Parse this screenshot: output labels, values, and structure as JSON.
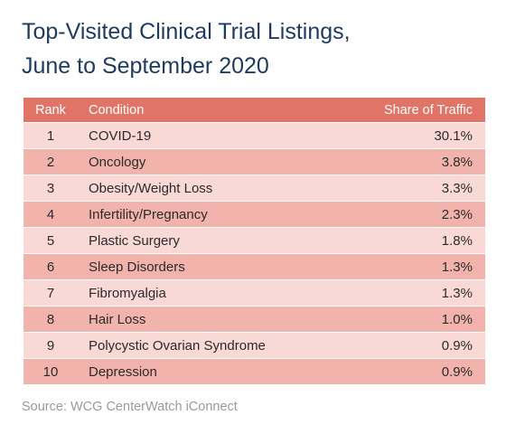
{
  "title_line1": "Top-Visited Clinical Trial Listings,",
  "title_line2": "June to September 2020",
  "source": "Source: WCG CenterWatch iConnect",
  "colors": {
    "header": "#e07467",
    "row_light": "#f8d9d6",
    "row_dark": "#f1b3ab",
    "title": "#1f3a5f"
  },
  "chart_data": {
    "type": "table",
    "title": "Top-Visited Clinical Trial Listings, June to September 2020",
    "columns": [
      "Rank",
      "Condition",
      "Share of Traffic"
    ],
    "rows": [
      {
        "rank": "1",
        "condition": "COVID-19",
        "share": "30.1%"
      },
      {
        "rank": "2",
        "condition": "Oncology",
        "share": "3.8%"
      },
      {
        "rank": "3",
        "condition": "Obesity/Weight Loss",
        "share": "3.3%"
      },
      {
        "rank": "4",
        "condition": "Infertility/Pregnancy",
        "share": "2.3%"
      },
      {
        "rank": "5",
        "condition": "Plastic Surgery",
        "share": "1.8%"
      },
      {
        "rank": "6",
        "condition": "Sleep Disorders",
        "share": "1.3%"
      },
      {
        "rank": "7",
        "condition": "Fibromyalgia",
        "share": "1.3%"
      },
      {
        "rank": "8",
        "condition": "Hair Loss",
        "share": "1.0%"
      },
      {
        "rank": "9",
        "condition": "Polycystic Ovarian Syndrome",
        "share": "0.9%"
      },
      {
        "rank": "10",
        "condition": "Depression",
        "share": "0.9%"
      }
    ]
  }
}
